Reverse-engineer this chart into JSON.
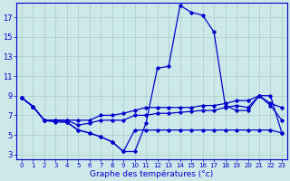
{
  "xlabel": "Graphe des températures (°c)",
  "bg_color": "#cce8e8",
  "grid_color": "#aacccc",
  "line_color": "#0000cc",
  "ylim": [
    2.5,
    18.5
  ],
  "yticks": [
    3,
    5,
    7,
    9,
    11,
    13,
    15,
    17
  ],
  "xlim": [
    -0.5,
    23.5
  ],
  "temp_main": [
    8.8,
    7.9,
    6.5,
    6.5,
    6.3,
    5.5,
    5.2,
    4.8,
    4.3,
    3.3,
    3.3,
    6.2,
    11.8,
    12.0,
    18.2,
    17.5,
    17.2,
    15.5,
    8.0,
    7.5,
    7.5,
    9.0,
    9.0,
    5.2
  ],
  "temp_min": [
    8.8,
    7.9,
    6.5,
    6.3,
    6.3,
    5.5,
    5.2,
    4.8,
    4.3,
    3.3,
    5.5,
    5.5,
    5.5,
    5.5,
    5.5,
    5.5,
    5.5,
    5.5,
    5.5,
    5.5,
    5.5,
    5.5,
    5.5,
    5.2
  ],
  "temp_max": [
    8.8,
    7.9,
    6.5,
    6.5,
    6.5,
    6.5,
    6.5,
    7.0,
    7.0,
    7.2,
    7.5,
    7.8,
    7.8,
    7.8,
    7.8,
    7.8,
    8.0,
    8.0,
    8.2,
    8.5,
    8.5,
    9.0,
    8.2,
    7.8
  ],
  "temp_avg": [
    8.8,
    7.9,
    6.5,
    6.5,
    6.5,
    6.0,
    6.2,
    6.5,
    6.5,
    6.5,
    7.0,
    7.0,
    7.2,
    7.2,
    7.3,
    7.4,
    7.5,
    7.5,
    7.8,
    8.0,
    7.8,
    9.0,
    8.0,
    6.5
  ],
  "xlabel_fontsize": 6.5,
  "ytick_fontsize": 6.0,
  "xtick_fontsize": 5.0
}
